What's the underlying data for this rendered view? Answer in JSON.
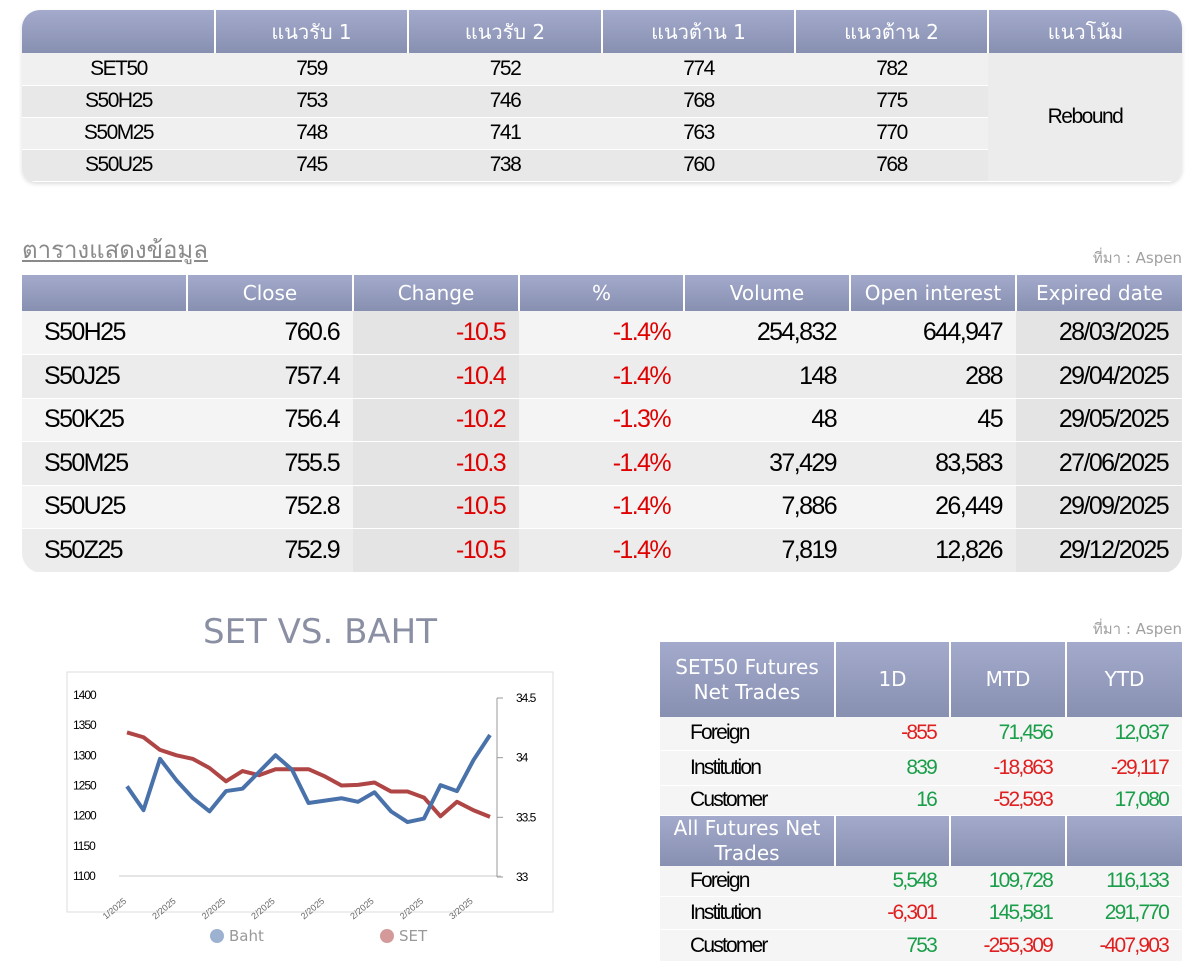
{
  "support_table": {
    "headers": [
      "",
      "แนวรับ 1",
      "แนวรับ 2",
      "แนวต้าน 1",
      "แนวต้าน 2",
      "แนวโน้ม"
    ],
    "rows": [
      {
        "name": "SET50",
        "s1": "759",
        "s2": "752",
        "r1": "774",
        "r2": "782"
      },
      {
        "name": "S50H25",
        "s1": "753",
        "s2": "746",
        "r1": "768",
        "r2": "775"
      },
      {
        "name": "S50M25",
        "s1": "748",
        "s2": "741",
        "r1": "763",
        "r2": "770"
      },
      {
        "name": "S50U25",
        "s1": "745",
        "s2": "738",
        "r1": "760",
        "r2": "768"
      }
    ],
    "trend": "Rebound"
  },
  "data_table": {
    "title": "ตารางแสดงข้อมูล",
    "source": "ที่มา : Aspen",
    "headers": [
      "",
      "Close",
      "Change",
      "%",
      "Volume",
      "Open interest",
      "Expired date"
    ],
    "rows": [
      [
        "S50H25",
        "760.6",
        "-10.5",
        "-1.4%",
        "254,832",
        "644,947",
        "28/03/2025"
      ],
      [
        "S50J25",
        "757.4",
        "-10.4",
        "-1.4%",
        "148",
        "288",
        "29/04/2025"
      ],
      [
        "S50K25",
        "756.4",
        "-10.2",
        "-1.3%",
        "48",
        "45",
        "29/05/2025"
      ],
      [
        "S50M25",
        "755.5",
        "-10.3",
        "-1.4%",
        "37,429",
        "83,583",
        "27/06/2025"
      ],
      [
        "S50U25",
        "752.8",
        "-10.5",
        "-1.4%",
        "7,886",
        "26,449",
        "29/09/2025"
      ],
      [
        "S50Z25",
        "752.9",
        "-10.5",
        "-1.4%",
        "7,819",
        "12,826",
        "29/12/2025"
      ]
    ]
  },
  "net_trades": {
    "source": "ที่มา : Aspen",
    "header1": [
      "SET50 Futures Net Trades",
      "1D",
      "MTD",
      "YTD"
    ],
    "set50_rows": [
      [
        "Foreign",
        "-855",
        "71,456",
        "12,037"
      ],
      [
        "Institution",
        "839",
        "-18,863",
        "-29,117"
      ],
      [
        "Customer",
        "16",
        "-52,593",
        "17,080"
      ]
    ],
    "header2": "All Futures Net Trades",
    "all_rows": [
      [
        "Foreign",
        "5,548",
        "109,728",
        "116,133"
      ],
      [
        "Institution",
        "-6,301",
        "145,581",
        "291,770"
      ],
      [
        "Customer",
        "753",
        "-255,309",
        "-407,903"
      ]
    ]
  },
  "colors": {
    "header": "#9aa1c2",
    "negative": "#e00000",
    "positive": "#1a9e4a",
    "baht": "#4a72aa",
    "set": "#b04545"
  },
  "chart_data": {
    "type": "line",
    "title": "SET VS. BAHT",
    "x_tick_labels": [
      "1/2025",
      "2/2025",
      "2/2025",
      "2/2025",
      "2/2025",
      "2/2025",
      "2/2025",
      "3/2025"
    ],
    "y_left": {
      "ticks": [
        "1400",
        "1350",
        "1300",
        "1250",
        "1200",
        "1150",
        "1100"
      ],
      "range": [
        1100,
        1400
      ]
    },
    "y_right": {
      "ticks": [
        "34.5",
        "34",
        "33.5",
        "33"
      ],
      "range": [
        33,
        34.5
      ]
    },
    "legend": "bottom",
    "series": [
      {
        "name": "Baht",
        "axis": "right",
        "color": "#4a72aa",
        "values": [
          33.76,
          33.56,
          33.99,
          33.81,
          33.66,
          33.55,
          33.72,
          33.74,
          33.88,
          34.02,
          33.9,
          33.62,
          33.64,
          33.66,
          33.63,
          33.71,
          33.55,
          33.46,
          33.49,
          33.77,
          33.72,
          33.98,
          34.19
        ]
      },
      {
        "name": "SET",
        "axis": "left",
        "color": "#b04545",
        "values": [
          1338,
          1330,
          1309,
          1300,
          1294,
          1279,
          1257,
          1274,
          1267,
          1277,
          1277,
          1277,
          1265,
          1250,
          1251,
          1255,
          1240,
          1240,
          1230,
          1199,
          1223,
          1209,
          1198
        ]
      }
    ]
  }
}
